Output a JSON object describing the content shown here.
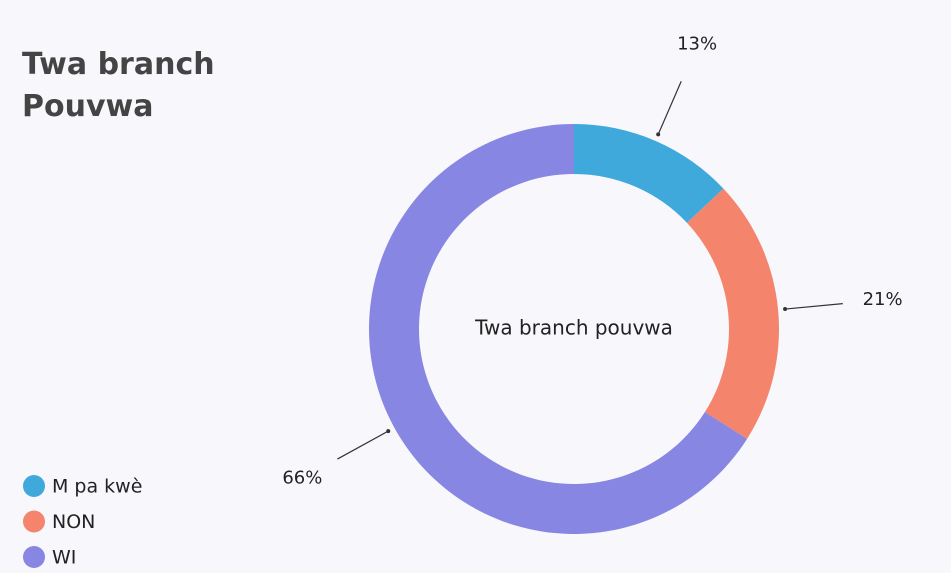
{
  "chart_data": {
    "type": "pie",
    "title": "Twa branch Pouvwa",
    "center_label": "Twa branch pouvwa",
    "categories": [
      "M pa kwè",
      "NON",
      "WI"
    ],
    "values": [
      13,
      21,
      66
    ],
    "value_labels": [
      "13%",
      "21%",
      "66%"
    ],
    "colors": [
      "#3fa9dc",
      "#f4846c",
      "#8787e3"
    ],
    "legend": "bottom-left"
  }
}
